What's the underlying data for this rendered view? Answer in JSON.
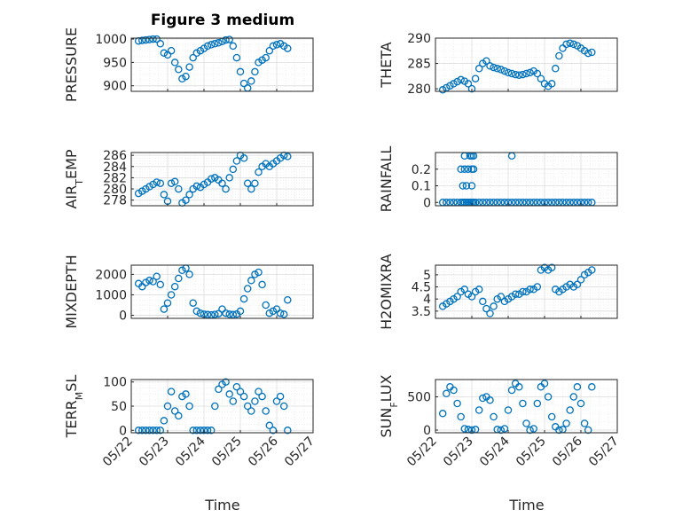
{
  "figure": {
    "title": "Figure 3 medium",
    "xlabel": "Time"
  },
  "colors": {
    "marker": "#0072bd",
    "axis": "#262626",
    "grid": "#dedede",
    "minorgrid": "#ececec"
  },
  "chart_data": [
    {
      "type": "scatter",
      "ylabel": "PRESSURE",
      "ylim": [
        888,
        1002
      ],
      "yticks": [
        900,
        950,
        1000
      ],
      "xticks": [
        "05/22",
        "05/23",
        "05/24",
        "05/25",
        "05/26",
        "05/27"
      ],
      "grid": true,
      "show_xticklabels": false,
      "x": [
        0.2,
        0.3,
        0.4,
        0.5,
        0.6,
        0.7,
        0.8,
        0.9,
        1.0,
        1.1,
        1.2,
        1.3,
        1.4,
        1.5,
        1.6,
        1.7,
        1.8,
        1.9,
        2.0,
        2.1,
        2.2,
        2.3,
        2.4,
        2.5,
        2.6,
        2.7,
        2.8,
        2.9,
        3.0,
        3.1,
        3.2,
        3.3,
        3.4,
        3.5,
        3.6,
        3.7,
        3.8,
        3.9,
        4.0,
        4.1,
        4.2,
        4.3
      ],
      "y": [
        996,
        997,
        998,
        999,
        1000,
        1000,
        990,
        970,
        966,
        975,
        950,
        935,
        915,
        920,
        940,
        960,
        970,
        975,
        980,
        985,
        988,
        990,
        992,
        995,
        998,
        999,
        985,
        960,
        930,
        905,
        895,
        910,
        930,
        950,
        955,
        960,
        975,
        985,
        988,
        990,
        985,
        980
      ]
    },
    {
      "type": "scatter",
      "ylabel": "THETA",
      "ylim": [
        279.5,
        290
      ],
      "yticks": [
        280,
        285,
        290
      ],
      "xticks": [
        "05/22",
        "05/23",
        "05/24",
        "05/25",
        "05/26",
        "05/27"
      ],
      "grid": true,
      "show_xticklabels": false,
      "x": [
        0.2,
        0.3,
        0.4,
        0.5,
        0.6,
        0.7,
        0.8,
        0.9,
        1.0,
        1.1,
        1.2,
        1.3,
        1.4,
        1.5,
        1.6,
        1.7,
        1.8,
        1.9,
        2.0,
        2.1,
        2.2,
        2.3,
        2.4,
        2.5,
        2.6,
        2.7,
        2.8,
        2.9,
        3.0,
        3.1,
        3.2,
        3.3,
        3.4,
        3.5,
        3.6,
        3.7,
        3.8,
        3.9,
        4.0,
        4.1,
        4.2,
        4.3
      ],
      "y": [
        279.8,
        280.2,
        280.6,
        281.0,
        281.4,
        281.8,
        281.5,
        281.0,
        280.0,
        282.0,
        284.0,
        285.0,
        285.5,
        284.5,
        284.2,
        284.0,
        283.8,
        283.5,
        283.2,
        283.0,
        282.8,
        282.7,
        282.8,
        283.0,
        283.2,
        283.5,
        283.0,
        282.0,
        281.0,
        280.5,
        281.0,
        284.0,
        286.5,
        288.0,
        288.8,
        289.0,
        288.8,
        288.5,
        288.0,
        287.5,
        287.0,
        287.2
      ]
    },
    {
      "type": "scatter",
      "ylabel": "AIR_TEMP",
      "ylim": [
        277,
        286.5
      ],
      "yticks": [
        278,
        280,
        282,
        284,
        286
      ],
      "xticks": [
        "05/22",
        "05/23",
        "05/24",
        "05/25",
        "05/26",
        "05/27"
      ],
      "grid": true,
      "show_xticklabels": false,
      "x": [
        0.2,
        0.3,
        0.4,
        0.5,
        0.6,
        0.7,
        0.8,
        0.9,
        1.0,
        1.1,
        1.2,
        1.3,
        1.4,
        1.5,
        1.6,
        1.7,
        1.8,
        1.9,
        2.0,
        2.1,
        2.2,
        2.3,
        2.4,
        2.5,
        2.6,
        2.7,
        2.8,
        2.9,
        3.0,
        3.1,
        3.2,
        3.3,
        3.4,
        3.5,
        3.6,
        3.7,
        3.8,
        3.9,
        4.0,
        4.1,
        4.2,
        4.3
      ],
      "y": [
        279.2,
        279.6,
        280.0,
        280.4,
        280.8,
        281.2,
        281.0,
        279.0,
        277.8,
        281.0,
        281.3,
        280.0,
        277.5,
        278.0,
        279.0,
        280.0,
        280.5,
        280.3,
        280.8,
        281.2,
        281.8,
        282.0,
        281.6,
        281.0,
        280.0,
        282.0,
        283.5,
        285.0,
        286.0,
        285.5,
        281.0,
        280.0,
        281.0,
        283.0,
        284.0,
        284.5,
        284.0,
        284.5,
        285.0,
        285.5,
        286.0,
        285.8
      ]
    },
    {
      "type": "scatter",
      "ylabel": "RAINFALL",
      "ylim": [
        -0.02,
        0.3
      ],
      "yticks": [
        0,
        0.1,
        0.2
      ],
      "xticks": [
        "05/22",
        "05/23",
        "05/24",
        "05/25",
        "05/26",
        "05/27"
      ],
      "grid": true,
      "show_xticklabels": false,
      "x": [
        0.2,
        0.3,
        0.4,
        0.5,
        0.6,
        0.7,
        0.75,
        0.8,
        0.85,
        0.9,
        0.95,
        1.0,
        1.05,
        1.1,
        1.2,
        1.3,
        1.4,
        1.5,
        1.6,
        1.7,
        1.8,
        1.9,
        2.0,
        2.1,
        2.2,
        2.3,
        2.4,
        2.5,
        2.6,
        2.7,
        2.8,
        2.9,
        3.0,
        3.1,
        3.2,
        3.3,
        3.4,
        3.5,
        3.6,
        3.7,
        3.8,
        3.9,
        4.0,
        4.1,
        4.2,
        4.3,
        0.7,
        0.8,
        0.9,
        1.0,
        1.05,
        0.75,
        0.85,
        1.0,
        0.8,
        0.95,
        1.0,
        1.05,
        2.1
      ],
      "y": [
        0,
        0,
        0,
        0,
        0,
        0,
        0,
        0,
        0,
        0,
        0,
        0,
        0,
        0,
        0,
        0,
        0,
        0,
        0,
        0,
        0,
        0,
        0,
        0,
        0,
        0,
        0,
        0,
        0,
        0,
        0,
        0,
        0,
        0,
        0,
        0,
        0,
        0,
        0,
        0,
        0,
        0,
        0,
        0,
        0,
        0,
        0.2,
        0.2,
        0.2,
        0.2,
        0.2,
        0.1,
        0.1,
        0.1,
        0.28,
        0.28,
        0.28,
        0.28,
        0.28
      ]
    },
    {
      "type": "scatter",
      "ylabel": "MIXDEPTH",
      "ylim": [
        -150,
        2450
      ],
      "yticks": [
        0,
        1000,
        2000
      ],
      "xticks": [
        "05/22",
        "05/23",
        "05/24",
        "05/25",
        "05/26",
        "05/27"
      ],
      "grid": true,
      "show_xticklabels": false,
      "x": [
        0.2,
        0.3,
        0.4,
        0.5,
        0.6,
        0.7,
        0.8,
        0.9,
        1.0,
        1.1,
        1.2,
        1.3,
        1.4,
        1.5,
        1.6,
        1.7,
        1.8,
        1.9,
        2.0,
        2.1,
        2.2,
        2.3,
        2.4,
        2.5,
        2.6,
        2.7,
        2.8,
        2.9,
        3.0,
        3.1,
        3.2,
        3.3,
        3.4,
        3.5,
        3.6,
        3.7,
        3.8,
        3.9,
        4.0,
        4.1,
        4.2,
        4.3
      ],
      "y": [
        1550,
        1400,
        1600,
        1700,
        1650,
        1900,
        1500,
        300,
        600,
        1000,
        1400,
        1800,
        2200,
        2300,
        2000,
        600,
        200,
        100,
        50,
        30,
        20,
        40,
        80,
        300,
        100,
        50,
        30,
        60,
        200,
        800,
        1300,
        1700,
        2000,
        2100,
        1500,
        500,
        100,
        200,
        300,
        100,
        50,
        750
      ]
    },
    {
      "type": "scatter",
      "ylabel": "H2OMIXRA",
      "ylim": [
        3.2,
        5.4
      ],
      "yticks": [
        3.5,
        4,
        4.5,
        5
      ],
      "xticks": [
        "05/22",
        "05/23",
        "05/24",
        "05/25",
        "05/26",
        "05/27"
      ],
      "grid": true,
      "show_xticklabels": false,
      "x": [
        0.2,
        0.3,
        0.4,
        0.5,
        0.6,
        0.7,
        0.8,
        0.9,
        1.0,
        1.1,
        1.2,
        1.3,
        1.4,
        1.5,
        1.6,
        1.7,
        1.8,
        1.9,
        2.0,
        2.1,
        2.2,
        2.3,
        2.4,
        2.5,
        2.6,
        2.7,
        2.8,
        2.9,
        3.0,
        3.1,
        3.2,
        3.3,
        3.4,
        3.5,
        3.6,
        3.7,
        3.8,
        3.9,
        4.0,
        4.1,
        4.2,
        4.3
      ],
      "y": [
        3.7,
        3.8,
        3.9,
        4.0,
        4.1,
        4.3,
        4.4,
        4.2,
        4.1,
        4.3,
        4.4,
        3.9,
        3.6,
        3.4,
        3.7,
        4.0,
        4.1,
        3.9,
        4.0,
        4.1,
        4.2,
        4.2,
        4.3,
        4.3,
        4.4,
        4.4,
        4.5,
        5.2,
        5.3,
        5.2,
        5.3,
        4.4,
        4.3,
        4.4,
        4.5,
        4.6,
        4.5,
        4.6,
        4.8,
        5.0,
        5.1,
        5.2
      ]
    },
    {
      "type": "scatter",
      "ylabel": "TERR_MSL",
      "ylim": [
        -5,
        105
      ],
      "yticks": [
        0,
        50,
        100
      ],
      "xticks": [
        "05/22",
        "05/23",
        "05/24",
        "05/25",
        "05/26",
        "05/27"
      ],
      "grid": true,
      "show_xticklabels": true,
      "x": [
        0.2,
        0.3,
        0.4,
        0.5,
        0.6,
        0.7,
        0.8,
        0.9,
        1.0,
        1.1,
        1.2,
        1.3,
        1.4,
        1.5,
        1.6,
        1.7,
        1.8,
        1.9,
        2.0,
        2.1,
        2.2,
        2.3,
        2.4,
        2.5,
        2.6,
        2.7,
        2.8,
        2.9,
        3.0,
        3.1,
        3.2,
        3.3,
        3.4,
        3.5,
        3.6,
        3.7,
        3.8,
        3.9,
        4.0,
        4.1,
        4.2,
        4.3
      ],
      "y": [
        0,
        0,
        0,
        0,
        0,
        0,
        0,
        20,
        50,
        80,
        40,
        30,
        70,
        75,
        50,
        0,
        0,
        0,
        0,
        0,
        0,
        50,
        85,
        95,
        100,
        75,
        60,
        90,
        80,
        70,
        50,
        40,
        60,
        80,
        70,
        40,
        10,
        0,
        60,
        70,
        50,
        0
      ]
    },
    {
      "type": "scatter",
      "ylabel": "SUN_FLUX",
      "ylim": [
        -40,
        760
      ],
      "yticks": [
        0,
        500
      ],
      "xticks": [
        "05/22",
        "05/23",
        "05/24",
        "05/25",
        "05/26",
        "05/27"
      ],
      "grid": true,
      "show_xticklabels": true,
      "x": [
        0.2,
        0.3,
        0.4,
        0.5,
        0.6,
        0.7,
        0.8,
        0.9,
        1.0,
        1.1,
        1.2,
        1.3,
        1.4,
        1.5,
        1.6,
        1.7,
        1.8,
        1.9,
        2.0,
        2.1,
        2.2,
        2.3,
        2.4,
        2.5,
        2.6,
        2.7,
        2.8,
        2.9,
        3.0,
        3.1,
        3.2,
        3.3,
        3.4,
        3.5,
        3.6,
        3.7,
        3.8,
        3.9,
        4.0,
        4.1,
        4.2,
        4.3
      ],
      "y": [
        250,
        550,
        650,
        600,
        400,
        200,
        20,
        10,
        0,
        10,
        300,
        480,
        500,
        450,
        200,
        10,
        0,
        20,
        300,
        600,
        700,
        650,
        400,
        100,
        0,
        20,
        400,
        650,
        700,
        500,
        200,
        50,
        0,
        10,
        100,
        300,
        500,
        650,
        400,
        100,
        0,
        650
      ]
    }
  ]
}
